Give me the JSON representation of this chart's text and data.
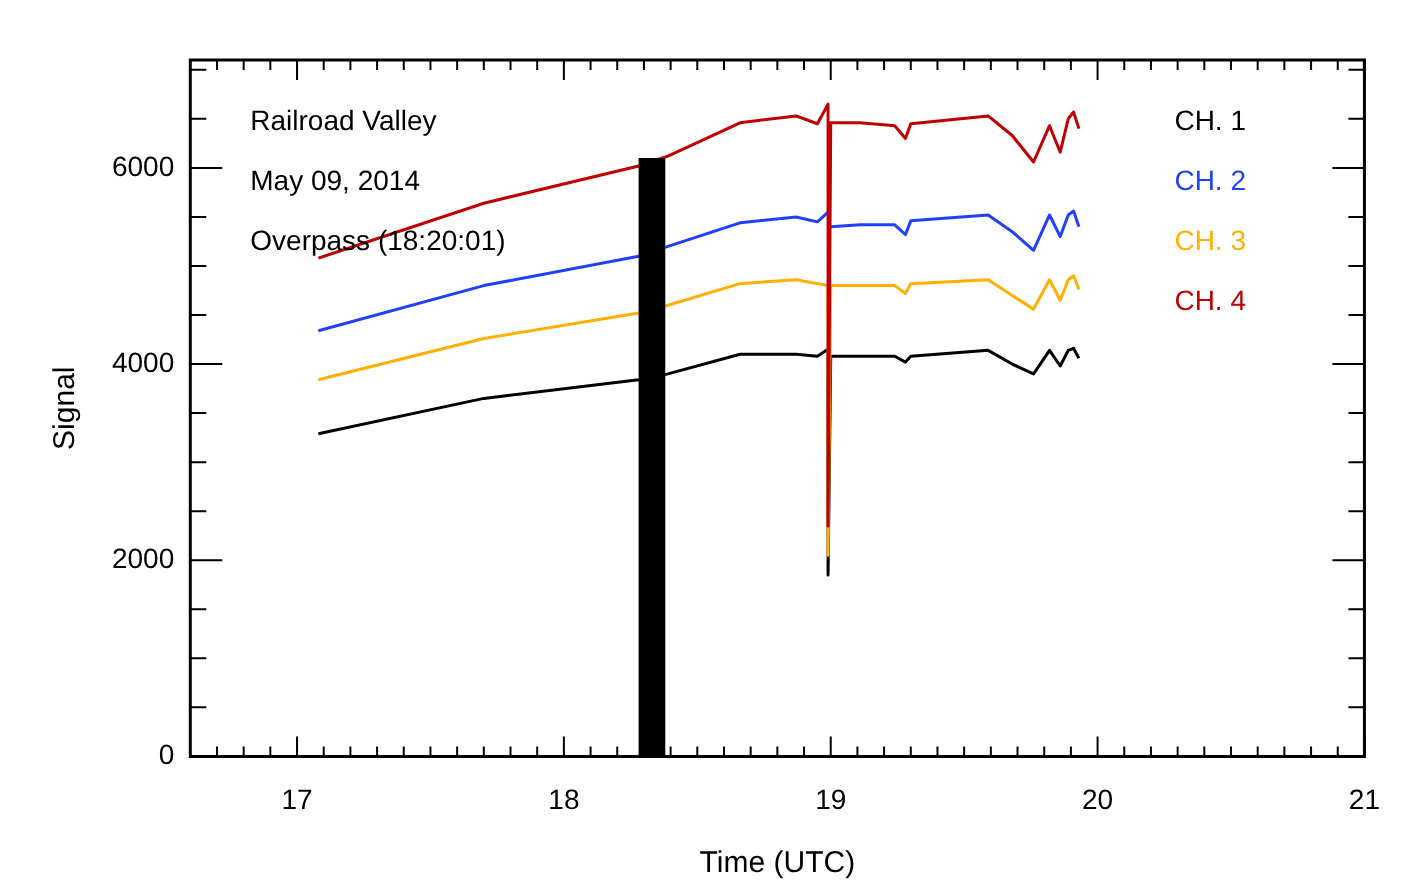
{
  "chart_data": {
    "type": "line",
    "xlabel": "Time (UTC)",
    "ylabel": "Signal",
    "annotations": [
      "Railroad Valley",
      "May 09, 2014",
      "Overpass (18:20:01)"
    ],
    "legend": "top right",
    "grid": false,
    "marker": "none",
    "line_style": "solid",
    "xlim": [
      16.6,
      21
    ],
    "ylim": [
      0,
      7100
    ],
    "xticks": [
      {
        "value": 16.7,
        "label": null
      },
      {
        "value": 16.8,
        "label": null
      },
      {
        "value": 16.9,
        "label": null
      },
      17,
      {
        "value": 17.1,
        "label": null
      },
      {
        "value": 17.2,
        "label": null
      },
      {
        "value": 17.3,
        "label": null
      },
      {
        "value": 17.4,
        "label": null
      },
      {
        "value": 17.5,
        "label": null
      },
      {
        "value": 17.6,
        "label": null
      },
      {
        "value": 17.7,
        "label": null
      },
      {
        "value": 17.8,
        "label": null
      },
      {
        "value": 17.9,
        "label": null
      },
      18,
      {
        "value": 18.1,
        "label": null
      },
      {
        "value": 18.2,
        "label": null
      },
      {
        "value": 18.3,
        "label": null
      },
      {
        "value": 18.4,
        "label": null
      },
      {
        "value": 18.5,
        "label": null
      },
      {
        "value": 18.6,
        "label": null
      },
      {
        "value": 18.7,
        "label": null
      },
      {
        "value": 18.8,
        "label": null
      },
      {
        "value": 18.9,
        "label": null
      },
      19,
      {
        "value": 19.1,
        "label": null
      },
      {
        "value": 19.2,
        "label": null
      },
      {
        "value": 19.3,
        "label": null
      },
      {
        "value": 19.4,
        "label": null
      },
      {
        "value": 19.5,
        "label": null
      },
      {
        "value": 19.6,
        "label": null
      },
      {
        "value": 19.7,
        "label": null
      },
      {
        "value": 19.8,
        "label": null
      },
      {
        "value": 19.9,
        "label": null
      },
      20,
      {
        "value": 20.1,
        "label": null
      },
      {
        "value": 20.2,
        "label": null
      },
      {
        "value": 20.3,
        "label": null
      },
      {
        "value": 20.4,
        "label": null
      },
      {
        "value": 20.5,
        "label": null
      },
      {
        "value": 20.6,
        "label": null
      },
      {
        "value": 20.7,
        "label": null
      },
      {
        "value": 20.8,
        "label": null
      },
      {
        "value": 20.9,
        "label": null
      },
      21
    ],
    "yticks": [
      0,
      {
        "value": 500,
        "label": null
      },
      {
        "value": 1000,
        "label": null
      },
      {
        "value": 1500,
        "label": null
      },
      2000,
      {
        "value": 2500,
        "label": null
      },
      {
        "value": 3000,
        "label": null
      },
      {
        "value": 3500,
        "label": null
      },
      4000,
      {
        "value": 4500,
        "label": null
      },
      {
        "value": 5000,
        "label": null
      },
      {
        "value": 5500,
        "label": null
      },
      6000,
      {
        "value": 6500,
        "label": null
      },
      {
        "value": 7000,
        "label": null
      }
    ],
    "x": [
      17.08,
      17.7,
      18.28,
      18.39,
      18.66,
      18.87,
      18.95,
      18.99,
      18.99,
      19.0,
      19.11,
      19.24,
      19.28,
      19.3,
      19.59,
      19.68,
      19.76,
      19.82,
      19.86,
      19.89,
      19.91,
      19.93
    ],
    "series": [
      {
        "name": "CH. 1",
        "color": "#000000",
        "values": [
          3290,
          3650,
          3840,
          3900,
          4100,
          4100,
          4080,
          4150,
          1850,
          4080,
          4080,
          4080,
          4020,
          4080,
          4140,
          4000,
          3900,
          4140,
          3980,
          4140,
          4160,
          4060
        ]
      },
      {
        "name": "CH. 2",
        "color": "#2040ff",
        "values": [
          4340,
          4800,
          5100,
          5200,
          5440,
          5500,
          5450,
          5550,
          null,
          5400,
          5420,
          5420,
          5320,
          5460,
          5520,
          5350,
          5160,
          5520,
          5300,
          5520,
          5560,
          5400
        ]
      },
      {
        "name": "CH. 3",
        "color": "#ffb000",
        "values": [
          3840,
          4260,
          4520,
          4600,
          4820,
          4860,
          4820,
          4800,
          2050,
          4800,
          4800,
          4800,
          4720,
          4820,
          4860,
          4700,
          4560,
          4860,
          4650,
          4860,
          4900,
          4760
        ]
      },
      {
        "name": "CH. 4",
        "color": "#c00000",
        "values": [
          5080,
          5640,
          6020,
          6120,
          6460,
          6530,
          6450,
          6650,
          2350,
          6460,
          6460,
          6430,
          6300,
          6450,
          6530,
          6330,
          6060,
          6430,
          6160,
          6500,
          6570,
          6400
        ]
      },
      {
        "type": "area",
        "color": "#000000",
        "x": [
          18.28,
          18.38
        ],
        "values": [
          6100,
          6100
        ]
      }
    ]
  }
}
